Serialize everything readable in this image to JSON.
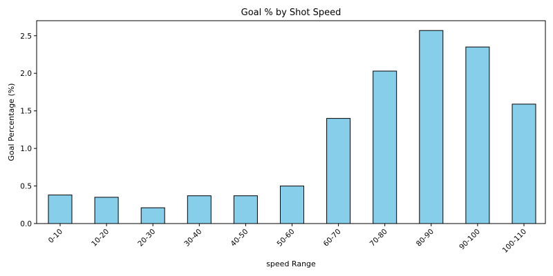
{
  "chart_data": {
    "type": "bar",
    "title": "Goal % by Shot Speed",
    "xlabel": "speed Range",
    "ylabel": "Goal Percentage (%)",
    "categories": [
      "0-10",
      "10-20",
      "20-30",
      "30-40",
      "40-50",
      "50-60",
      "60-70",
      "70-80",
      "80-90",
      "90-100",
      "100-110"
    ],
    "values": [
      0.38,
      0.35,
      0.21,
      0.37,
      0.37,
      0.5,
      1.4,
      2.03,
      2.57,
      2.35,
      1.59
    ],
    "ylim": [
      0,
      2.7
    ],
    "yticks": [
      0.0,
      0.5,
      1.0,
      1.5,
      2.0,
      2.5
    ],
    "ytick_labels": [
      "0.0",
      "0.5",
      "1.0",
      "1.5",
      "2.0",
      "2.5"
    ],
    "bar_color": "#87ceeb",
    "edge_color": "#000000",
    "grid": false,
    "legend": false
  }
}
